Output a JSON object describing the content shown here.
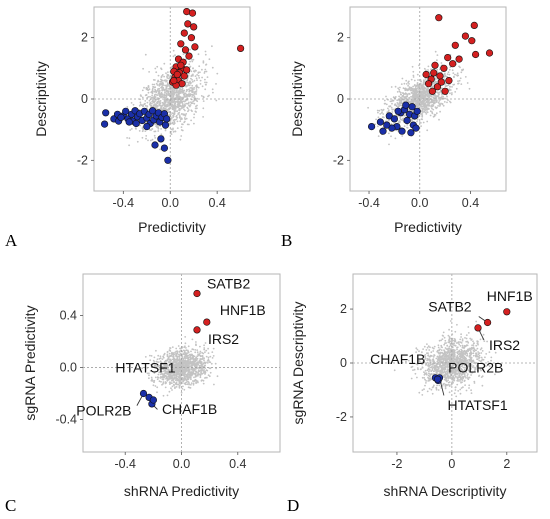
{
  "colors": {
    "red": "#d42020",
    "blue": "#1a2fa8",
    "background_points": "#c3c3c3"
  },
  "chart_data": [
    {
      "type": "scatter",
      "panel": "A",
      "xlabel": "Predictivity",
      "ylabel": "Descriptivity",
      "xlim": [
        -0.65,
        0.68
      ],
      "ylim": [
        -3.0,
        3.0
      ],
      "xticks": [
        -0.4,
        0.0,
        0.4
      ],
      "yticks": [
        -2,
        0,
        2
      ],
      "xtick_labels": [
        "-0.4",
        "0.0",
        "0.4"
      ],
      "ytick_labels": [
        "-2",
        "0",
        "2"
      ],
      "grid": false,
      "zero_lines": true,
      "series": [
        {
          "color": "red",
          "points": [
            [
              0.6,
              1.65
            ],
            [
              0.14,
              2.85
            ],
            [
              0.19,
              2.8
            ],
            [
              0.15,
              2.45
            ],
            [
              0.2,
              2.35
            ],
            [
              0.12,
              2.15
            ],
            [
              0.18,
              2.0
            ],
            [
              0.21,
              1.7
            ],
            [
              0.09,
              1.8
            ],
            [
              0.13,
              1.6
            ],
            [
              0.16,
              1.4
            ],
            [
              0.07,
              1.3
            ],
            [
              0.11,
              1.2
            ],
            [
              0.05,
              1.05
            ],
            [
              0.1,
              1.0
            ],
            [
              0.03,
              0.9
            ],
            [
              0.08,
              0.85
            ],
            [
              0.12,
              0.75
            ],
            [
              0.04,
              0.7
            ],
            [
              0.07,
              0.6
            ],
            [
              0.1,
              0.5
            ],
            [
              0.02,
              0.55
            ],
            [
              0.05,
              0.45
            ],
            [
              0.09,
              1.1
            ],
            [
              0.14,
              0.95
            ],
            [
              0.06,
              0.8
            ],
            [
              0.03,
              0.6
            ]
          ]
        },
        {
          "color": "blue",
          "points": [
            [
              -0.55,
              -0.45
            ],
            [
              -0.56,
              -0.82
            ],
            [
              -0.48,
              -0.65
            ],
            [
              -0.45,
              -0.5
            ],
            [
              -0.44,
              -0.72
            ],
            [
              -0.4,
              -0.55
            ],
            [
              -0.38,
              -0.4
            ],
            [
              -0.36,
              -0.65
            ],
            [
              -0.33,
              -0.5
            ],
            [
              -0.32,
              -0.72
            ],
            [
              -0.3,
              -0.38
            ],
            [
              -0.28,
              -0.58
            ],
            [
              -0.26,
              -0.48
            ],
            [
              -0.24,
              -0.7
            ],
            [
              -0.22,
              -0.4
            ],
            [
              -0.2,
              -0.62
            ],
            [
              -0.18,
              -0.5
            ],
            [
              -0.17,
              -0.8
            ],
            [
              -0.15,
              -0.38
            ],
            [
              -0.14,
              -0.68
            ],
            [
              -0.12,
              -0.55
            ],
            [
              -0.1,
              -0.45
            ],
            [
              -0.09,
              -0.75
            ],
            [
              -0.07,
              -0.6
            ],
            [
              -0.05,
              -0.48
            ],
            [
              -0.04,
              -0.85
            ],
            [
              -0.03,
              -0.65
            ],
            [
              -0.08,
              -1.3
            ],
            [
              -0.13,
              -1.5
            ],
            [
              -0.05,
              -1.6
            ],
            [
              -0.02,
              -2.0
            ],
            [
              -0.2,
              -0.9
            ],
            [
              -0.29,
              -0.8
            ],
            [
              -0.42,
              -0.6
            ],
            [
              -0.35,
              -0.75
            ]
          ]
        }
      ]
    },
    {
      "type": "scatter",
      "panel": "B",
      "xlabel": "Predictivity",
      "ylabel": "Descriptivity",
      "xlim": [
        -0.55,
        0.68
      ],
      "ylim": [
        -3.0,
        3.0
      ],
      "xticks": [
        -0.4,
        0.0,
        0.4
      ],
      "yticks": [
        -2,
        0,
        2
      ],
      "xtick_labels": [
        "-0.4",
        "0.0",
        "0.4"
      ],
      "ytick_labels": [
        "-2",
        "0",
        "2"
      ],
      "grid": false,
      "zero_lines": true,
      "series": [
        {
          "color": "red",
          "points": [
            [
              0.15,
              2.65
            ],
            [
              0.43,
              2.4
            ],
            [
              0.36,
              2.05
            ],
            [
              0.41,
              1.9
            ],
            [
              0.28,
              1.75
            ],
            [
              0.55,
              1.5
            ],
            [
              0.44,
              1.45
            ],
            [
              0.31,
              1.3
            ],
            [
              0.22,
              1.35
            ],
            [
              0.26,
              1.15
            ],
            [
              0.19,
              1.0
            ],
            [
              0.12,
              1.1
            ],
            [
              0.11,
              0.85
            ],
            [
              0.16,
              0.75
            ],
            [
              0.09,
              0.65
            ],
            [
              0.07,
              0.5
            ],
            [
              0.14,
              0.4
            ],
            [
              0.2,
              0.25
            ],
            [
              0.1,
              0.25
            ],
            [
              0.05,
              0.8
            ],
            [
              0.17,
              0.55
            ],
            [
              0.23,
              0.6
            ]
          ]
        },
        {
          "color": "blue",
          "points": [
            [
              -0.38,
              -0.9
            ],
            [
              -0.31,
              -0.75
            ],
            [
              -0.29,
              -1.05
            ],
            [
              -0.24,
              -0.55
            ],
            [
              -0.2,
              -0.65
            ],
            [
              -0.18,
              -0.9
            ],
            [
              -0.15,
              -0.45
            ],
            [
              -0.12,
              -0.35
            ],
            [
              -0.1,
              -0.7
            ],
            [
              -0.08,
              -0.5
            ],
            [
              -0.06,
              -0.25
            ],
            [
              -0.05,
              -0.85
            ],
            [
              -0.04,
              -0.55
            ],
            [
              -0.14,
              -1.05
            ],
            [
              -0.22,
              -0.95
            ],
            [
              -0.07,
              -1.1
            ],
            [
              -0.02,
              -0.4
            ],
            [
              -0.11,
              -0.2
            ],
            [
              -0.17,
              -0.4
            ],
            [
              -0.26,
              -0.85
            ],
            [
              -0.03,
              -0.95
            ]
          ]
        }
      ]
    },
    {
      "type": "scatter",
      "panel": "C",
      "xlabel": "shRNA Predictivity",
      "ylabel": "sgRNA Predictivity",
      "xlim": [
        -0.7,
        0.7
      ],
      "ylim": [
        -0.65,
        0.72
      ],
      "xticks": [
        -0.4,
        0.0,
        0.4
      ],
      "yticks": [
        -0.4,
        0.0,
        0.4
      ],
      "xtick_labels": [
        "-0.4",
        "0.0",
        "0.4"
      ],
      "ytick_labels": [
        "-0.4",
        "0.0",
        "0.4"
      ],
      "grid": false,
      "zero_lines": true,
      "series": [
        {
          "color": "red",
          "points": [
            [
              0.11,
              0.57
            ],
            [
              0.18,
              0.35
            ],
            [
              0.11,
              0.29
            ]
          ]
        },
        {
          "color": "blue",
          "points": [
            [
              -0.27,
              -0.2
            ],
            [
              -0.23,
              -0.23
            ],
            [
              -0.21,
              -0.28
            ],
            [
              -0.2,
              -0.25
            ]
          ]
        }
      ],
      "annotations": [
        {
          "text": "SATB2",
          "x": 0.11,
          "y": 0.57
        },
        {
          "text": "HNF1B",
          "x": 0.18,
          "y": 0.35
        },
        {
          "text": "IRS2",
          "x": 0.11,
          "y": 0.29
        },
        {
          "text": "HTATSF1",
          "x": 0.0,
          "y": 0.0
        },
        {
          "text": "CHAF1B",
          "x": -0.21,
          "y": -0.28
        },
        {
          "text": "POLR2B",
          "x": -0.27,
          "y": -0.2
        }
      ]
    },
    {
      "type": "scatter",
      "panel": "D",
      "xlabel": "shRNA Descriptivity",
      "ylabel": "sgRNA Descriptivity",
      "xlim": [
        -3.6,
        3.1
      ],
      "ylim": [
        -3.3,
        3.3
      ],
      "xticks": [
        -2,
        0,
        2
      ],
      "yticks": [
        -2,
        0,
        2
      ],
      "xtick_labels": [
        "-2",
        "0",
        "2"
      ],
      "ytick_labels": [
        "-2",
        "0",
        "2"
      ],
      "grid": false,
      "zero_lines": true,
      "series": [
        {
          "color": "red",
          "points": [
            [
              2.0,
              1.9
            ],
            [
              1.3,
              1.5
            ],
            [
              0.95,
              1.3
            ]
          ]
        },
        {
          "color": "blue",
          "points": [
            [
              -0.6,
              -0.55
            ],
            [
              -0.5,
              -0.65
            ],
            [
              -0.45,
              -0.55
            ],
            [
              -0.52,
              -0.6
            ]
          ]
        }
      ],
      "annotations": [
        {
          "text": "HNF1B",
          "x": 2.0,
          "y": 1.9
        },
        {
          "text": "SATB2",
          "x": 1.3,
          "y": 1.5
        },
        {
          "text": "IRS2",
          "x": 0.95,
          "y": 1.3
        },
        {
          "text": "CHAF1B",
          "x": -0.6,
          "y": -0.55
        },
        {
          "text": "POLR2B",
          "x": -0.5,
          "y": -0.65
        },
        {
          "text": "HTATSF1",
          "x": -0.45,
          "y": -0.55
        }
      ]
    }
  ]
}
